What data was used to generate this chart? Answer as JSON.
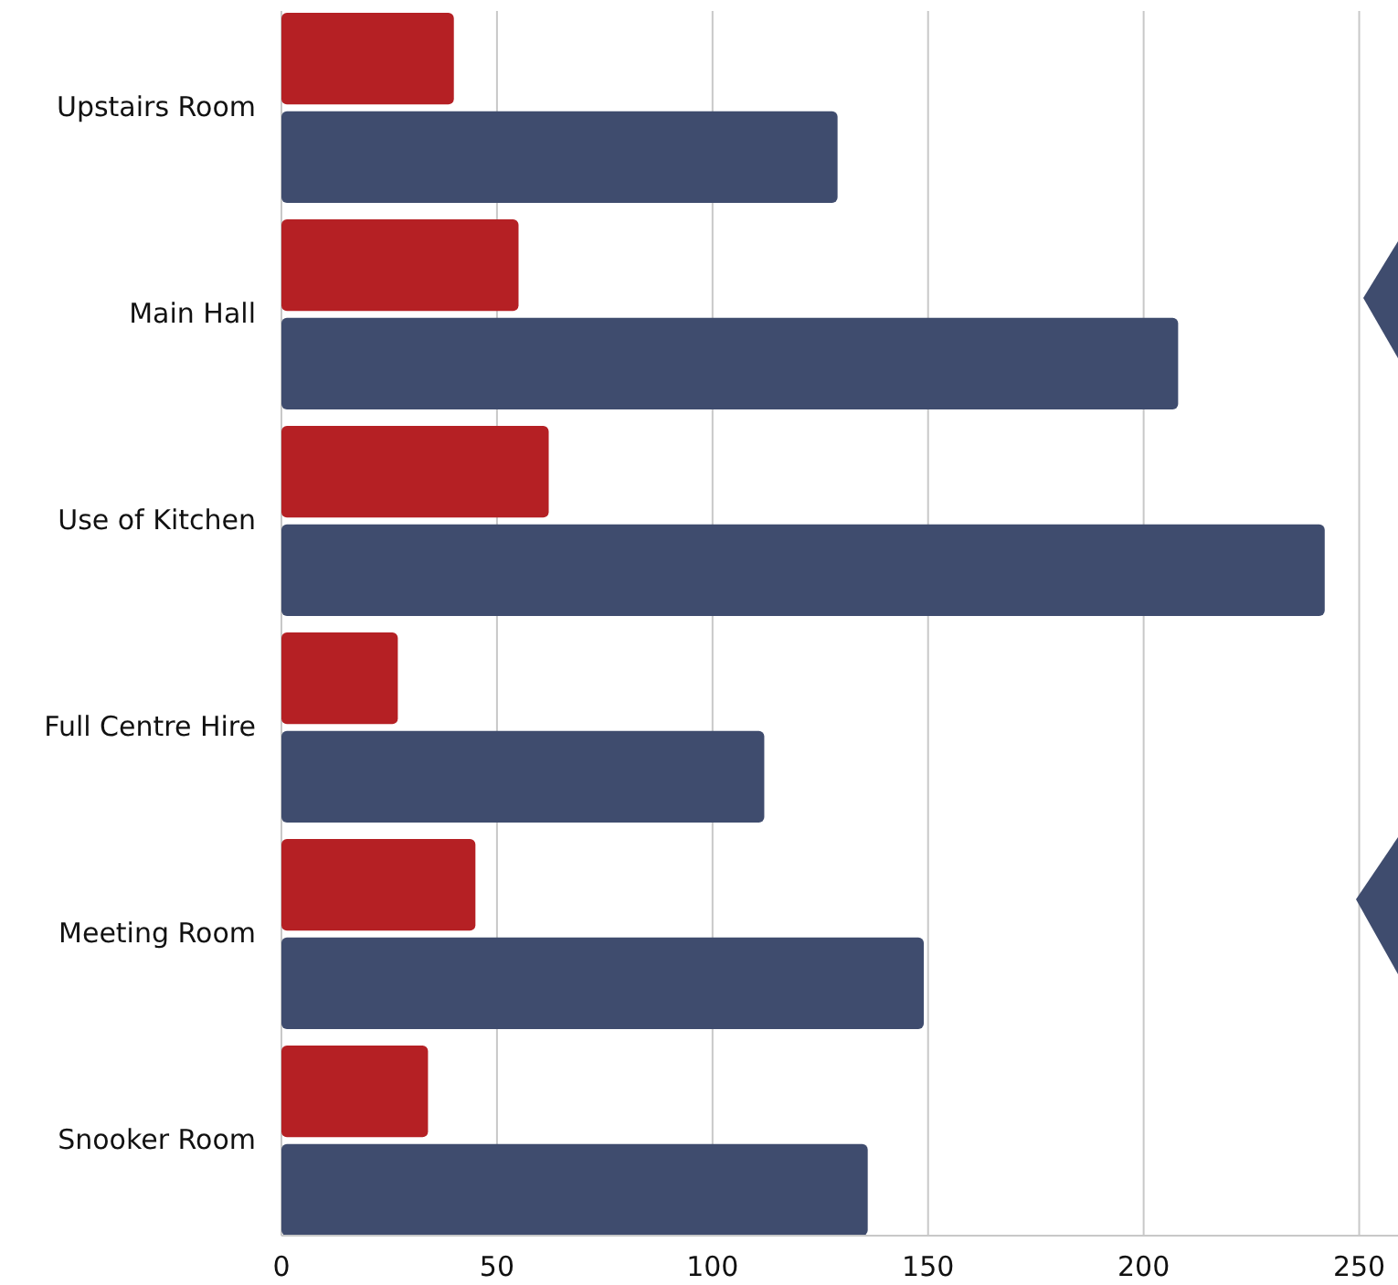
{
  "chart_data": {
    "type": "bar",
    "orientation": "horizontal",
    "categories": [
      "Upstairs Room",
      "Main Hall",
      "Use of Kitchen",
      "Full Centre Hire",
      "Meeting Room",
      "Snooker Room"
    ],
    "series": [
      {
        "color": "#b52024",
        "values": [
          40,
          55,
          62,
          27,
          45,
          34
        ]
      },
      {
        "color": "#3f4c6e",
        "values": [
          129,
          208,
          242,
          112,
          149,
          136
        ]
      }
    ],
    "xlim": [
      0,
      259
    ],
    "xticks": [
      0,
      50,
      100,
      150,
      200,
      250
    ],
    "grid": "x"
  }
}
